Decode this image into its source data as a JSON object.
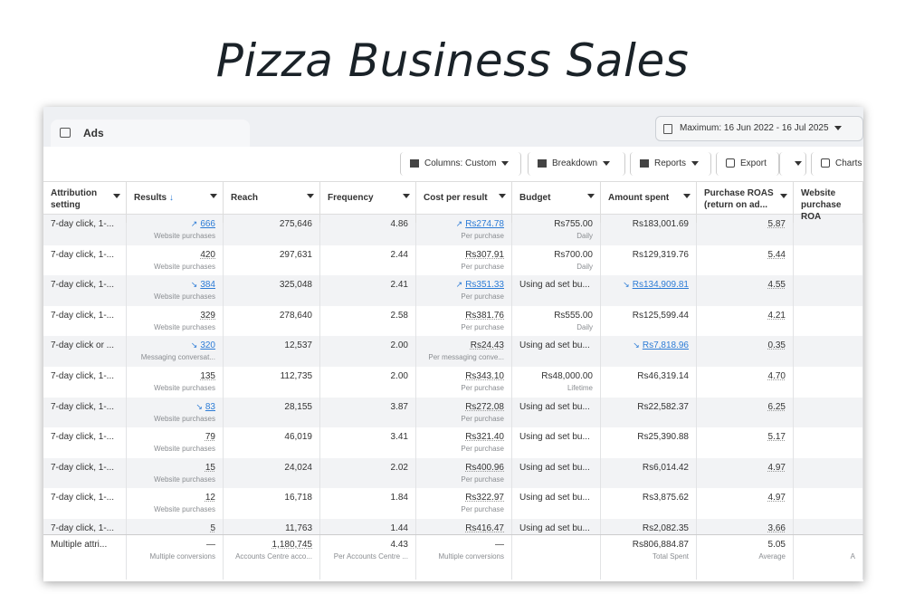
{
  "title": "Pizza Business Sales",
  "tab": {
    "label": "Ads"
  },
  "date_range": "Maximum: 16 Jun 2022 - 16 Jul 2025",
  "toolbar": {
    "columns": "Columns: Custom",
    "breakdown": "Breakdown",
    "reports": "Reports",
    "export": "Export",
    "charts": "Charts"
  },
  "headers": [
    "Attribution setting",
    "Results",
    "Reach",
    "Frequency",
    "Cost per result",
    "Budget",
    "Amount spent",
    "Purchase ROAS (return on ad...",
    "Website purchase ROA"
  ],
  "rows": [
    {
      "attr": "7-day click, 1-...",
      "results": "666",
      "results_trend": "up",
      "results_sub": "Website purchases",
      "reach": "275,646",
      "freq": "4.86",
      "cost": "Rs274.78",
      "cost_trend": "up",
      "cost_sub": "Per purchase",
      "budget": "Rs755.00",
      "budget_sub": "Daily",
      "spent": "Rs183,001.69",
      "spent_trend": "",
      "roas": "5.87"
    },
    {
      "attr": "7-day click, 1-...",
      "results": "420",
      "results_trend": "",
      "results_sub": "Website purchases",
      "reach": "297,631",
      "freq": "2.44",
      "cost": "Rs307.91",
      "cost_trend": "",
      "cost_sub": "Per purchase",
      "budget": "Rs700.00",
      "budget_sub": "Daily",
      "spent": "Rs129,319.76",
      "spent_trend": "",
      "roas": "5.44"
    },
    {
      "attr": "7-day click, 1-...",
      "results": "384",
      "results_trend": "down",
      "results_sub": "Website purchases",
      "reach": "325,048",
      "freq": "2.41",
      "cost": "Rs351.33",
      "cost_trend": "up",
      "cost_sub": "Per purchase",
      "budget": "Using ad set bu...",
      "budget_sub": "",
      "spent": "Rs134,909.81",
      "spent_trend": "down",
      "roas": "4.55"
    },
    {
      "attr": "7-day click, 1-...",
      "results": "329",
      "results_trend": "",
      "results_sub": "Website purchases",
      "reach": "278,640",
      "freq": "2.58",
      "cost": "Rs381.76",
      "cost_trend": "",
      "cost_sub": "Per purchase",
      "budget": "Rs555.00",
      "budget_sub": "Daily",
      "spent": "Rs125,599.44",
      "spent_trend": "",
      "roas": "4.21"
    },
    {
      "attr": "7-day click or ...",
      "results": "320",
      "results_trend": "down",
      "results_sub": "Messaging conversat...",
      "reach": "12,537",
      "freq": "2.00",
      "cost": "Rs24.43",
      "cost_trend": "",
      "cost_sub": "Per messaging conve...",
      "budget": "Using ad set bu...",
      "budget_sub": "",
      "spent": "Rs7,818.96",
      "spent_trend": "down",
      "roas": "0.35"
    },
    {
      "attr": "7-day click, 1-...",
      "results": "135",
      "results_trend": "",
      "results_sub": "Website purchases",
      "reach": "112,735",
      "freq": "2.00",
      "cost": "Rs343.10",
      "cost_trend": "",
      "cost_sub": "Per purchase",
      "budget": "Rs48,000.00",
      "budget_sub": "Lifetime",
      "spent": "Rs46,319.14",
      "spent_trend": "",
      "roas": "4.70"
    },
    {
      "attr": "7-day click, 1-...",
      "results": "83",
      "results_trend": "down",
      "results_sub": "Website purchases",
      "reach": "28,155",
      "freq": "3.87",
      "cost": "Rs272.08",
      "cost_trend": "",
      "cost_sub": "Per purchase",
      "budget": "Using ad set bu...",
      "budget_sub": "",
      "spent": "Rs22,582.37",
      "spent_trend": "",
      "roas": "6.25"
    },
    {
      "attr": "7-day click, 1-...",
      "results": "79",
      "results_trend": "",
      "results_sub": "Website purchases",
      "reach": "46,019",
      "freq": "3.41",
      "cost": "Rs321.40",
      "cost_trend": "",
      "cost_sub": "Per purchase",
      "budget": "Using ad set bu...",
      "budget_sub": "",
      "spent": "Rs25,390.88",
      "spent_trend": "",
      "roas": "5.17"
    },
    {
      "attr": "7-day click, 1-...",
      "results": "15",
      "results_trend": "",
      "results_sub": "Website purchases",
      "reach": "24,024",
      "freq": "2.02",
      "cost": "Rs400.96",
      "cost_trend": "",
      "cost_sub": "Per purchase",
      "budget": "Using ad set bu...",
      "budget_sub": "",
      "spent": "Rs6,014.42",
      "spent_trend": "",
      "roas": "4.97"
    },
    {
      "attr": "7-day click, 1-...",
      "results": "12",
      "results_trend": "",
      "results_sub": "Website purchases",
      "reach": "16,718",
      "freq": "1.84",
      "cost": "Rs322.97",
      "cost_trend": "",
      "cost_sub": "Per purchase",
      "budget": "Using ad set bu...",
      "budget_sub": "",
      "spent": "Rs3,875.62",
      "spent_trend": "",
      "roas": "4.97"
    },
    {
      "attr": "7-day click, 1-...",
      "results": "5",
      "results_trend": "",
      "results_sub": "",
      "reach": "11,763",
      "freq": "1.44",
      "cost": "Rs416.47",
      "cost_trend": "",
      "cost_sub": "",
      "budget": "Using ad set bu...",
      "budget_sub": "",
      "spent": "Rs2,082.35",
      "spent_trend": "",
      "roas": "3.66"
    }
  ],
  "footer": {
    "attr": "Multiple attri...",
    "results": "—",
    "results_sub": "Multiple conversions",
    "reach": "1,180,745",
    "reach_sub": "Accounts Centre acco...",
    "freq": "4.43",
    "freq_sub": "Per Accounts Centre ...",
    "cost": "—",
    "cost_sub": "Multiple conversions",
    "spent": "Rs806,884.87",
    "spent_sub": "Total Spent",
    "roas": "5.05",
    "roas_sub": "Average",
    "website_sub": "A"
  },
  "colors": {
    "link": "#2d7cd6",
    "alt_row": "#f2f3f5"
  }
}
